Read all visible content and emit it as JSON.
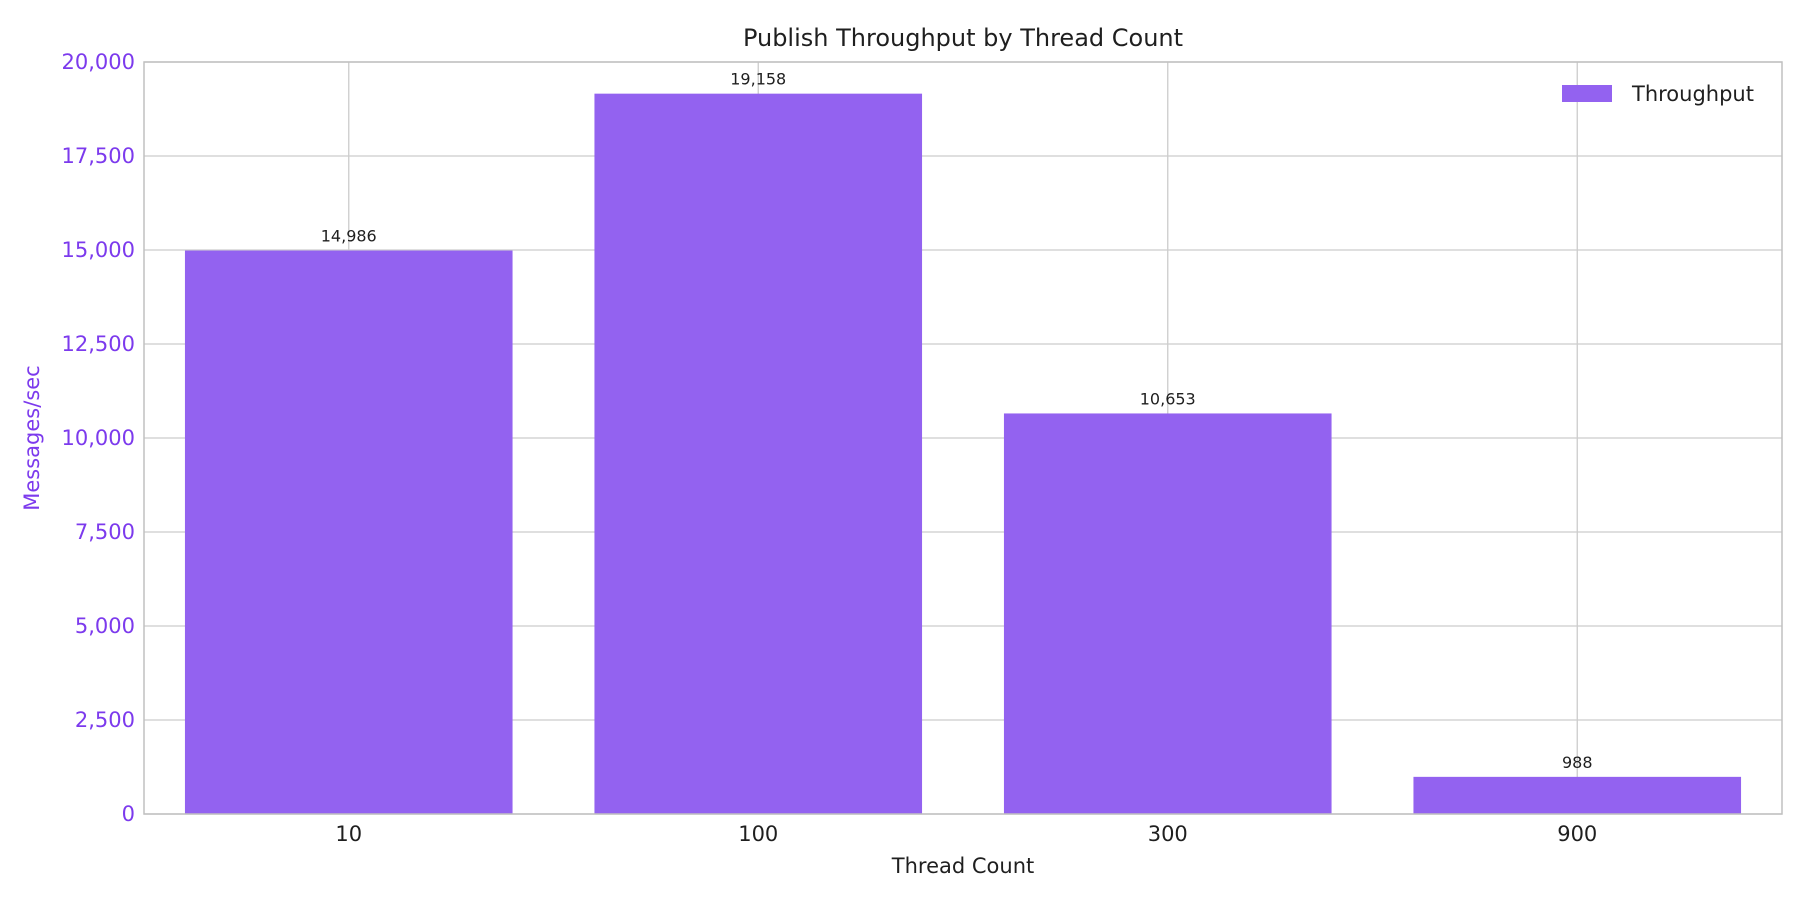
{
  "colors": {
    "bar": "#9362f0",
    "axis_accent": "#7c3aed",
    "grid": "#cccccc",
    "frame": "#c0c0c0",
    "text": "#1f1f1f"
  },
  "chart_data": {
    "type": "bar",
    "title": "Publish Throughput by Thread Count",
    "xlabel": "Thread Count",
    "ylabel": "Messages/sec",
    "categories": [
      "10",
      "100",
      "300",
      "900"
    ],
    "series": [
      {
        "name": "Throughput",
        "values": [
          14986,
          19158,
          10653,
          988
        ],
        "labels": [
          "14,986",
          "19,158",
          "10,653",
          "988"
        ]
      }
    ],
    "ylim": [
      0,
      20000
    ],
    "yticks": [
      0,
      2500,
      5000,
      7500,
      10000,
      12500,
      15000,
      17500,
      20000
    ],
    "ytick_labels": [
      "0",
      "2,500",
      "5,000",
      "7,500",
      "10,000",
      "12,500",
      "15,000",
      "17,500",
      "20,000"
    ],
    "grid": true,
    "legend_position": "top-right"
  }
}
